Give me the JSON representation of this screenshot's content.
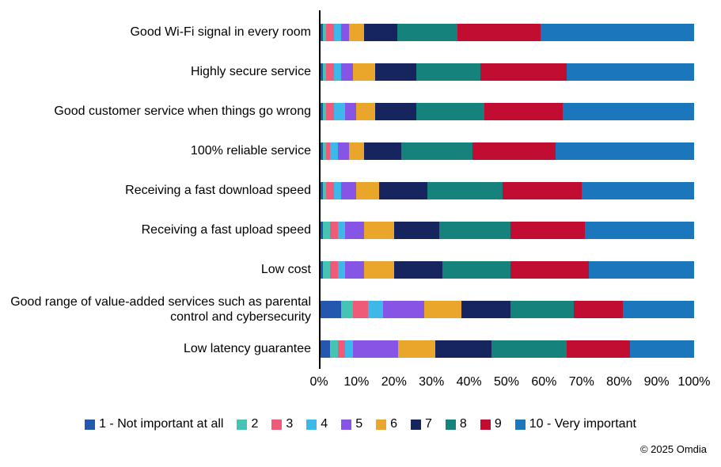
{
  "chart_data": {
    "type": "bar",
    "stacked": true,
    "orientation": "horizontal",
    "unit": "%",
    "title": "",
    "xlabel": "",
    "ylabel": "",
    "xlim": [
      0,
      100
    ],
    "grid": false,
    "legend_position": "bottom",
    "x_ticks": [
      "0%",
      "10%",
      "20%",
      "30%",
      "40%",
      "50%",
      "60%",
      "70%",
      "80%",
      "90%",
      "100%"
    ],
    "categories": [
      "Good Wi-Fi signal in every room",
      "Highly secure service",
      "Good customer service when things go wrong",
      "100% reliable service",
      "Receiving a fast download speed",
      "Receiving a fast upload speed",
      "Low cost",
      "Good range of value-added services such as parental control and cybersecurity",
      "Low latency guarantee"
    ],
    "series": [
      {
        "name": "1 - Not important at all",
        "color": "#2458af",
        "values": [
          1,
          1,
          1,
          1,
          1,
          1,
          1,
          6,
          3
        ]
      },
      {
        "name": "2",
        "color": "#45c4b4",
        "values": [
          1,
          1,
          1,
          1,
          1,
          2,
          2,
          3,
          2
        ]
      },
      {
        "name": "3",
        "color": "#ef5a78",
        "values": [
          2,
          2,
          2,
          1,
          2,
          2,
          2,
          4,
          2
        ]
      },
      {
        "name": "4",
        "color": "#3eb7e9",
        "values": [
          2,
          2,
          3,
          2,
          2,
          2,
          2,
          4,
          2
        ]
      },
      {
        "name": "5",
        "color": "#8655e6",
        "values": [
          2,
          3,
          3,
          3,
          4,
          5,
          5,
          11,
          12
        ]
      },
      {
        "name": "6",
        "color": "#eaa62b",
        "values": [
          4,
          6,
          5,
          4,
          6,
          8,
          8,
          10,
          10
        ]
      },
      {
        "name": "7",
        "color": "#17255f",
        "values": [
          9,
          11,
          11,
          10,
          13,
          12,
          13,
          13,
          15
        ]
      },
      {
        "name": "8",
        "color": "#15837c",
        "values": [
          16,
          17,
          18,
          19,
          20,
          19,
          18,
          17,
          20
        ]
      },
      {
        "name": "9",
        "color": "#c00d31",
        "values": [
          22,
          23,
          21,
          22,
          21,
          20,
          21,
          13,
          17
        ]
      },
      {
        "name": "10 - Very important",
        "color": "#1b76bc",
        "values": [
          41,
          34,
          35,
          37,
          30,
          29,
          28,
          19,
          17
        ]
      }
    ]
  },
  "footer": {
    "copyright": "© 2025 Omdia"
  }
}
